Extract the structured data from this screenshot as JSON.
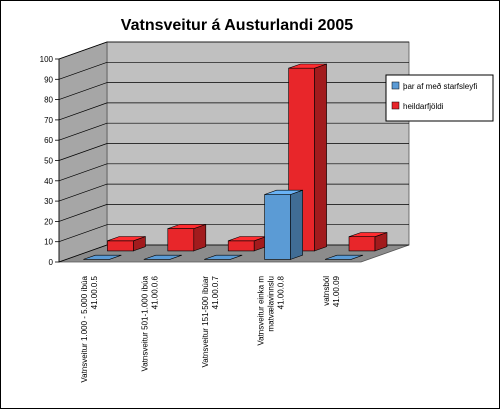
{
  "chart_data": {
    "type": "bar",
    "title": "Vatnsveitur á Austurlandi 2005",
    "categories": [
      [
        "Vatnsveitur 1.000 - 5.000 íbúa",
        "41.00.0.5"
      ],
      [
        "Vatnsveitur 501-1.000 íbúa",
        "41.00.0.6"
      ],
      [
        "Vatnsveitur 151-500 íbúar",
        "41.00.0.7"
      ],
      [
        "Vatnsveitur einka m",
        "matvælavinnslu",
        "41.00.0.8"
      ],
      [
        "vatnsból",
        "41.00.09"
      ]
    ],
    "series": [
      {
        "name": "þar af með starfsleyfi",
        "values": [
          0,
          0,
          0,
          32,
          0
        ],
        "color": "#5b9bd5"
      },
      {
        "name": "heildarfjöldi",
        "values": [
          5,
          11,
          5,
          90,
          7
        ],
        "color": "#e8262a"
      }
    ],
    "ylim": [
      0,
      100
    ],
    "yticks": [
      0,
      10,
      20,
      30,
      40,
      50,
      60,
      70,
      80,
      90,
      100
    ],
    "grid": true,
    "legend_position": "right",
    "style": "3d-clustered-bar"
  }
}
